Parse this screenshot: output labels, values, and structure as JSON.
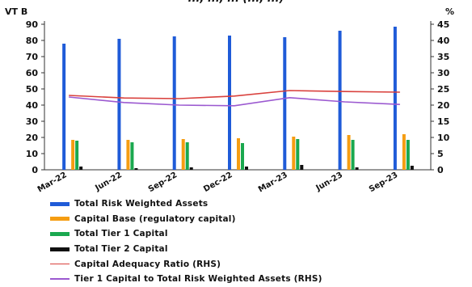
{
  "caption": "..., ..., ... (..., ...)",
  "chart_data": {
    "type": "bar",
    "left_unit": "VT B",
    "right_unit": "%",
    "categories": [
      "Mar-22",
      "Jun-22",
      "Sep-22",
      "Dec-22",
      "Mar-23",
      "Jun-23",
      "Sep-23"
    ],
    "ylim_left": [
      0,
      90
    ],
    "ylim_right": [
      0,
      45
    ],
    "yticks_left": [
      "0",
      "10",
      "20",
      "30",
      "40",
      "50",
      "60",
      "70",
      "80",
      "90"
    ],
    "yticks_right": [
      "0",
      "5",
      "10",
      "15",
      "20",
      "25",
      "30",
      "35",
      "40",
      "45"
    ],
    "grid": false,
    "legend_position": "bottom",
    "series": [
      {
        "name": "Total Risk Weighted Assets",
        "type": "bar",
        "axis": "left",
        "color": "#1f5bd8",
        "values": [
          78,
          81,
          82.5,
          83,
          82,
          86,
          88.5
        ]
      },
      {
        "name": "Capital Base (regulatory capital)",
        "type": "bar",
        "axis": "left",
        "color": "#f59d12",
        "values": [
          18.5,
          18.5,
          19,
          19.5,
          20.5,
          21.5,
          22
        ]
      },
      {
        "name": "Total Tier 1 Capital",
        "type": "bar",
        "axis": "left",
        "color": "#1aa84f",
        "values": [
          18,
          17,
          17,
          16.5,
          19,
          18.5,
          18.5
        ]
      },
      {
        "name": "Total Tier 2 Capital",
        "type": "bar",
        "axis": "left",
        "color": "#111111",
        "values": [
          2,
          1,
          1.5,
          2,
          3,
          1.5,
          2.5
        ]
      },
      {
        "name": "Capital Adequacy Ratio (RHS)",
        "type": "line",
        "axis": "right",
        "color": "#d9413d",
        "values": [
          23,
          22.2,
          22,
          22.8,
          24.5,
          24.2,
          24
        ]
      },
      {
        "name": "Tier 1 Capital to Total Risk Weighted Assets (RHS)",
        "type": "line",
        "axis": "right",
        "color": "#9b59d0",
        "values": [
          22.5,
          20.8,
          20,
          19.8,
          22.3,
          21,
          20.2
        ]
      }
    ]
  }
}
